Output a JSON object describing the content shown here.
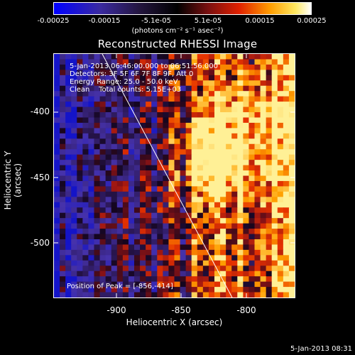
{
  "colorbar": {
    "ticks": [
      "-0.00025",
      "-0.00015",
      "-5.1e-05",
      "5.1e-05",
      "0.00015",
      "0.00025"
    ],
    "unit_label": "(photons cm⁻² s⁻¹ asec⁻²)"
  },
  "title": "Reconstructed RHESSI Image",
  "info": {
    "time_range": "5-Jan-2013 06:46:00.000 to 06:51:56.000",
    "detectors": "Detectors: 3F 5F 6F 7F 8F 9F, Att 0",
    "energy": "Energy Range: 25.0 - 50.0 keV",
    "method": "Clean    Total counts: 5.15E+03",
    "peak": "Position of Peak = [-856,-414]"
  },
  "axes": {
    "xlabel": "Heliocentric X (arcsec)",
    "ylabel": "Heliocentric Y (arcsec)",
    "xticks": [
      "-900",
      "-850",
      "-800"
    ],
    "yticks": [
      "-400",
      "-450",
      "-500"
    ],
    "xlim": [
      -949,
      -761
    ],
    "ylim": [
      -546,
      -361
    ]
  },
  "footer": {
    "timestamp": "5-Jan-2013 08:31"
  }
}
